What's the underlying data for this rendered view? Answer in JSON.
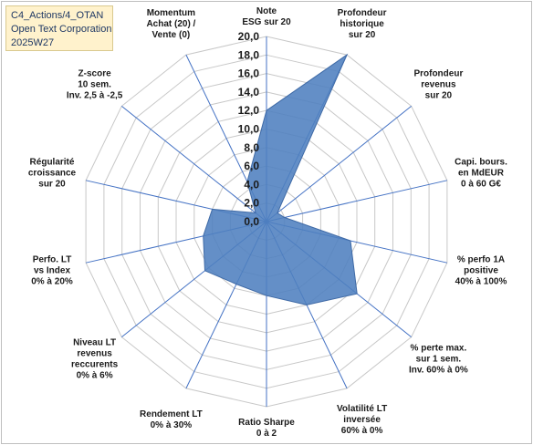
{
  "title_box": {
    "line1": "C4_Actions/4_OTAN",
    "line2": "Open Text Corporation",
    "line3": "2025W27"
  },
  "colors": {
    "fill": "#4f7fbf",
    "stroke": "#3f6aa6",
    "grid": "#c8c8c8",
    "spoke": "#4472c4",
    "title_bg": "#fff2cc"
  },
  "chart_data": {
    "type": "radar",
    "rmax": 20,
    "ticks": [
      "0,0",
      "2,0",
      "4,0",
      "6,0",
      "8,0",
      "10,0",
      "12,0",
      "14,0",
      "16,0",
      "18,0",
      "20,0"
    ],
    "axes": [
      {
        "label": [
          "Note",
          "ESG sur 20"
        ]
      },
      {
        "label": [
          "Profondeur",
          "historique",
          "sur 20"
        ]
      },
      {
        "label": [
          "Profondeur",
          "revenus",
          "sur 20"
        ]
      },
      {
        "label": [
          "Capi. bours.",
          "en MdEUR",
          "0 à 60 G€"
        ]
      },
      {
        "label": [
          "% perfo 1A",
          "positive",
          "40% à 100%"
        ]
      },
      {
        "label": [
          "% perte max.",
          "sur 1 sem.",
          "Inv. 60% à 0%"
        ]
      },
      {
        "label": [
          "Volatilité LT",
          "inversée",
          "60% à 0%"
        ]
      },
      {
        "label": [
          "Ratio Sharpe",
          "0 à 2"
        ]
      },
      {
        "label": [
          "Rendement LT",
          "0% à 30%"
        ]
      },
      {
        "label": [
          "Niveau LT",
          "revenus",
          "reccurents",
          "0% à 6%"
        ]
      },
      {
        "label": [
          "Perfo. LT",
          "vs Index",
          "0% à 20%"
        ]
      },
      {
        "label": [
          "Régularité",
          "croissance",
          "sur 20"
        ]
      },
      {
        "label": [
          "Z-score",
          "10 sem.",
          "Inv. 2,5 à -2,5"
        ]
      },
      {
        "label": [
          "Momentum",
          "Achat (20) /",
          "Vente (0)"
        ]
      }
    ],
    "values": [
      12.0,
      20.0,
      1.5,
      2.0,
      9.3,
      12.5,
      10.0,
      8.0,
      7.5,
      8.5,
      7.0,
      6.0,
      1.5,
      4.8
    ]
  }
}
